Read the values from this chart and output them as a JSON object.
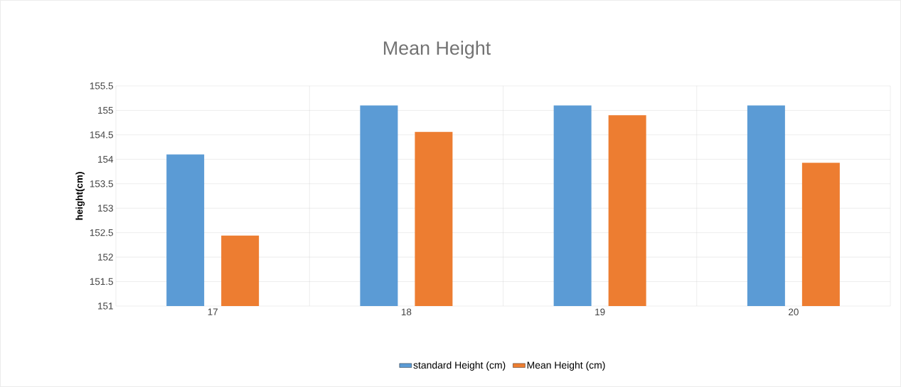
{
  "chart_data": {
    "type": "bar",
    "title": "Mean Height",
    "ylabel": "height(cm)",
    "categories": [
      "17",
      "18",
      "19",
      "20"
    ],
    "series": [
      {
        "name": "standard Height (cm)",
        "color": "#5b9bd5",
        "values": [
          154.1,
          155.1,
          155.1,
          155.1
        ]
      },
      {
        "name": "Mean Height (cm)",
        "color": "#ed7d31",
        "values": [
          152.44,
          154.56,
          154.9,
          153.93
        ]
      }
    ],
    "ylim": [
      151,
      155.5
    ],
    "yticks": [
      151,
      151.5,
      152,
      152.5,
      153,
      153.5,
      154,
      154.5,
      155,
      155.5
    ],
    "grid": true,
    "legend": "bottom"
  }
}
